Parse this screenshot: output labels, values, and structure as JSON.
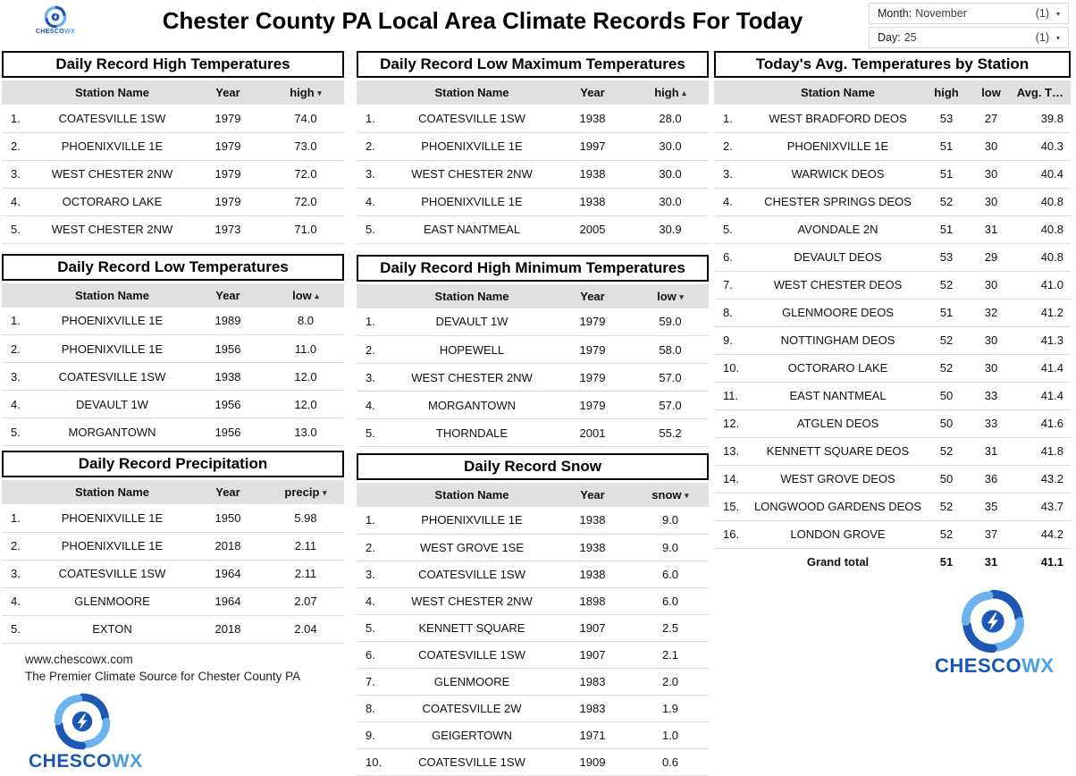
{
  "header": {
    "title": "Chester County PA Local Area Climate Records For Today",
    "brand": {
      "part1": "CHESCO",
      "part2": "WX"
    }
  },
  "colors": {
    "brand_dark_blue": "#1756b8",
    "brand_light_blue": "#4aa0e0",
    "table_header_gray": "#e0e0e0"
  },
  "filters": {
    "month": {
      "label": "Month:",
      "value": "November",
      "count": "(1)",
      "caret": "▾"
    },
    "day": {
      "label": "Day:",
      "value": "25",
      "count": "(1)",
      "caret": "▾"
    }
  },
  "tables": {
    "record_high": {
      "title": "Daily Record High Temperatures",
      "station_header": "Station Name",
      "year_header": "Year",
      "value_header": "high",
      "sort_arrow": "▾",
      "rows": [
        [
          "1.",
          "COATESVILLE 1SW",
          "1979",
          "74.0"
        ],
        [
          "2.",
          "PHOENIXVILLE 1E",
          "1979",
          "73.0"
        ],
        [
          "3.",
          "WEST CHESTER 2NW",
          "1979",
          "72.0"
        ],
        [
          "4.",
          "OCTORARO LAKE",
          "1979",
          "72.0"
        ],
        [
          "5.",
          "WEST CHESTER 2NW",
          "1973",
          "71.0"
        ]
      ]
    },
    "record_low_max": {
      "title": "Daily Record Low Maximum Temperatures",
      "station_header": "Station Name",
      "year_header": "Year",
      "value_header": "high",
      "sort_arrow": "▴",
      "rows": [
        [
          "1.",
          "COATESVILLE 1SW",
          "1938",
          "28.0"
        ],
        [
          "2.",
          "PHOENIXVILLE 1E",
          "1997",
          "30.0"
        ],
        [
          "3.",
          "WEST CHESTER 2NW",
          "1938",
          "30.0"
        ],
        [
          "4.",
          "PHOENIXVILLE 1E",
          "1938",
          "30.0"
        ],
        [
          "5.",
          "EAST NANTMEAL",
          "2005",
          "30.9"
        ]
      ]
    },
    "record_low": {
      "title": "Daily Record Low Temperatures",
      "station_header": "Station Name",
      "year_header": "Year",
      "value_header": "low",
      "sort_arrow": "▴",
      "rows": [
        [
          "1.",
          "PHOENIXVILLE 1E",
          "1989",
          "8.0"
        ],
        [
          "2.",
          "PHOENIXVILLE 1E",
          "1956",
          "11.0"
        ],
        [
          "3.",
          "COATESVILLE 1SW",
          "1938",
          "12.0"
        ],
        [
          "4.",
          "DEVAULT 1W",
          "1956",
          "12.0"
        ],
        [
          "5.",
          "MORGANTOWN",
          "1956",
          "13.0"
        ]
      ]
    },
    "record_high_min": {
      "title": "Daily Record High Minimum Temperatures",
      "station_header": "Station Name",
      "year_header": "Year",
      "value_header": "low",
      "sort_arrow": "▾",
      "rows": [
        [
          "1.",
          "DEVAULT 1W",
          "1979",
          "59.0"
        ],
        [
          "2.",
          "HOPEWELL",
          "1979",
          "58.0"
        ],
        [
          "3.",
          "WEST CHESTER 2NW",
          "1979",
          "57.0"
        ],
        [
          "4.",
          "MORGANTOWN",
          "1979",
          "57.0"
        ],
        [
          "5.",
          "THORNDALE",
          "2001",
          "55.2"
        ]
      ]
    },
    "record_precip": {
      "title": "Daily Record Precipitation",
      "station_header": "Station Name",
      "year_header": "Year",
      "value_header": "precip",
      "sort_arrow": "▾",
      "rows": [
        [
          "1.",
          "PHOENIXVILLE 1E",
          "1950",
          "5.98"
        ],
        [
          "2.",
          "PHOENIXVILLE 1E",
          "2018",
          "2.11"
        ],
        [
          "3.",
          "COATESVILLE 1SW",
          "1964",
          "2.11"
        ],
        [
          "4.",
          "GLENMOORE",
          "1964",
          "2.07"
        ],
        [
          "5.",
          "EXTON",
          "2018",
          "2.04"
        ]
      ]
    },
    "record_snow": {
      "title": "Daily Record Snow",
      "station_header": "Station Name",
      "year_header": "Year",
      "value_header": "snow",
      "sort_arrow": "▾",
      "rows": [
        [
          "1.",
          "PHOENIXVILLE 1E",
          "1938",
          "9.0"
        ],
        [
          "2.",
          "WEST GROVE 1SE",
          "1938",
          "9.0"
        ],
        [
          "3.",
          "COATESVILLE 1SW",
          "1938",
          "6.0"
        ],
        [
          "4.",
          "WEST CHESTER 2NW",
          "1898",
          "6.0"
        ],
        [
          "5.",
          "KENNETT SQUARE",
          "1907",
          "2.5"
        ],
        [
          "6.",
          "COATESVILLE 1SW",
          "1907",
          "2.1"
        ],
        [
          "7.",
          "GLENMOORE",
          "1983",
          "2.0"
        ],
        [
          "8.",
          "COATESVILLE 2W",
          "1983",
          "1.9"
        ],
        [
          "9.",
          "GEIGERTOWN",
          "1971",
          "1.0"
        ],
        [
          "10.",
          "COATESVILLE 1SW",
          "1909",
          "0.6"
        ]
      ]
    },
    "avg_temps": {
      "title": "Today's Avg. Temperatures by Station",
      "station_header": "Station Name",
      "high_header": "high",
      "low_header": "low",
      "avg_header": "Avg. T…",
      "rows": [
        [
          "1.",
          "WEST BRADFORD DEOS",
          "53",
          "27",
          "39.8"
        ],
        [
          "2.",
          "PHOENIXVILLE 1E",
          "51",
          "30",
          "40.3"
        ],
        [
          "3.",
          "WARWICK DEOS",
          "51",
          "30",
          "40.4"
        ],
        [
          "4.",
          "CHESTER SPRINGS DEOS",
          "52",
          "30",
          "40.8"
        ],
        [
          "5.",
          "AVONDALE 2N",
          "51",
          "31",
          "40.8"
        ],
        [
          "6.",
          "DEVAULT DEOS",
          "53",
          "29",
          "40.8"
        ],
        [
          "7.",
          "WEST CHESTER DEOS",
          "52",
          "30",
          "41.0"
        ],
        [
          "8.",
          "GLENMOORE DEOS",
          "51",
          "32",
          "41.2"
        ],
        [
          "9.",
          "NOTTINGHAM DEOS",
          "52",
          "30",
          "41.3"
        ],
        [
          "10.",
          "OCTORARO LAKE",
          "52",
          "30",
          "41.4"
        ],
        [
          "11.",
          "EAST NANTMEAL",
          "50",
          "33",
          "41.4"
        ],
        [
          "12.",
          "ATGLEN DEOS",
          "50",
          "33",
          "41.6"
        ],
        [
          "13.",
          "KENNETT SQUARE DEOS",
          "52",
          "31",
          "41.8"
        ],
        [
          "14.",
          "WEST GROVE DEOS",
          "50",
          "36",
          "43.2"
        ],
        [
          "15.",
          "LONGWOOD GARDENS DEOS",
          "52",
          "35",
          "43.7"
        ],
        [
          "16.",
          "LONDON GROVE",
          "52",
          "37",
          "44.2"
        ]
      ],
      "grand_total": {
        "label": "Grand total",
        "high": "51",
        "low": "31",
        "avg": "41.1"
      }
    }
  },
  "footer": {
    "website": "www.chescowx.com",
    "tagline": "The Premier Climate Source for Chester County PA"
  }
}
